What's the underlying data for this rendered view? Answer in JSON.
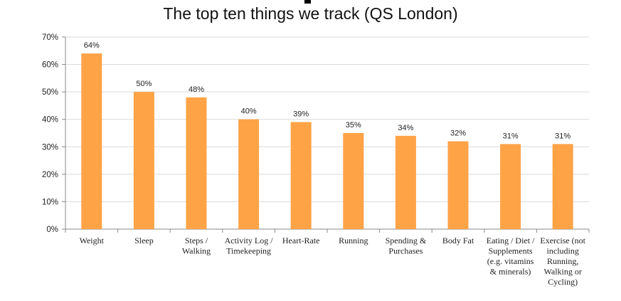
{
  "chart_data": {
    "type": "bar",
    "title": "The top ten things we track (QS London)",
    "categories": [
      "Weight",
      "Sleep",
      "Steps / Walking",
      "Activity Log / Timekeeping",
      "Heart-Rate",
      "Running",
      "Spending & Purchases",
      "Body Fat",
      "Eating / Diet / Supplements (e.g. vitamins & minerals)",
      "Exercise (not including Running, Walking or Cycling)"
    ],
    "category_lines": [
      [
        "Weight"
      ],
      [
        "Sleep"
      ],
      [
        "Steps /",
        "Walking"
      ],
      [
        "Activity Log /",
        "Timekeeping"
      ],
      [
        "Heart-Rate"
      ],
      [
        "Running"
      ],
      [
        "Spending &",
        "Purchases"
      ],
      [
        "Body Fat"
      ],
      [
        "Eating / Diet /",
        "Supplements",
        "(e.g. vitamins",
        "& minerals)"
      ],
      [
        "Exercise (not",
        "including",
        "Running,",
        "Walking or",
        "Cycling)"
      ]
    ],
    "values": [
      64,
      50,
      48,
      40,
      39,
      35,
      34,
      32,
      31,
      31
    ],
    "value_labels": [
      "64%",
      "50%",
      "48%",
      "40%",
      "39%",
      "35%",
      "34%",
      "32%",
      "31%",
      "31%"
    ],
    "y_ticks": [
      "0%",
      "10%",
      "20%",
      "30%",
      "40%",
      "50%",
      "60%",
      "70%"
    ],
    "ylim": [
      0,
      70
    ],
    "grid": true,
    "bar_color": "#FFA347",
    "xlabel": "",
    "ylabel": ""
  }
}
